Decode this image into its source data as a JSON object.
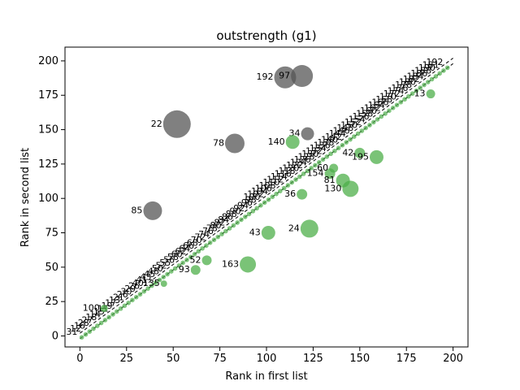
{
  "chart_data": {
    "type": "scatter",
    "title": "outstrength (g1)",
    "xlabel": "Rank in first list",
    "ylabel": "Rank in second list",
    "xlim": [
      -8,
      208
    ],
    "ylim": [
      -8,
      210
    ],
    "xticks": [
      0,
      25,
      50,
      75,
      100,
      125,
      150,
      175,
      200
    ],
    "yticks": [
      0,
      25,
      50,
      75,
      100,
      125,
      150,
      175,
      200
    ],
    "grid": false,
    "band_line_offsets": [
      -2,
      2
    ],
    "series": [
      {
        "color": "#555555",
        "points": [
          {
            "x": 52,
            "y": 154,
            "label": "22",
            "size": 34
          },
          {
            "x": 110,
            "y": 188,
            "label": "192",
            "size": 27
          },
          {
            "x": 119,
            "y": 189,
            "label": "97",
            "size": 27
          },
          {
            "x": 83,
            "y": 140,
            "label": "78",
            "size": 24
          },
          {
            "x": 39,
            "y": 91,
            "label": "85",
            "size": 23
          },
          {
            "x": 122,
            "y": 147,
            "label": "34",
            "size": 16
          }
        ]
      },
      {
        "color": "#4daf4a",
        "points": [
          {
            "x": 114,
            "y": 141,
            "label": "140",
            "size": 17
          },
          {
            "x": 123,
            "y": 78,
            "label": "24",
            "size": 22
          },
          {
            "x": 101,
            "y": 75,
            "label": "43",
            "size": 17
          },
          {
            "x": 90,
            "y": 52,
            "label": "163",
            "size": 20
          },
          {
            "x": 145,
            "y": 107,
            "label": "130",
            "size": 20
          },
          {
            "x": 141,
            "y": 113,
            "label": "81",
            "size": 17
          },
          {
            "x": 159,
            "y": 130,
            "label": "195",
            "size": 17
          },
          {
            "x": 150,
            "y": 133,
            "label": "42",
            "size": 13
          },
          {
            "x": 134,
            "y": 118,
            "label": "154",
            "size": 13
          },
          {
            "x": 136,
            "y": 122,
            "label": "60",
            "size": 11
          },
          {
            "x": 119,
            "y": 103,
            "label": "36",
            "size": 13
          },
          {
            "x": 62,
            "y": 48,
            "label": "93",
            "size": 12
          },
          {
            "x": 68,
            "y": 55,
            "label": "52",
            "size": 12
          },
          {
            "x": 188,
            "y": 176,
            "label": "13",
            "size": 11
          },
          {
            "x": 45,
            "y": 38,
            "label": "135",
            "size": 8
          },
          {
            "x": 13,
            "y": 20,
            "label": "100",
            "size": 9
          }
        ]
      }
    ],
    "diagonal_labels": [
      "31",
      "12",
      "16",
      "28",
      "27",
      "18",
      "14",
      "15",
      "11",
      "19",
      "17",
      "13",
      "21",
      "26",
      "30",
      "29",
      "26",
      "40",
      "41",
      "43",
      "45",
      "48",
      "50",
      "52",
      "55",
      "56",
      "58",
      "60",
      "62",
      "64",
      "66",
      "68",
      "70",
      "72",
      "74",
      "76",
      "78",
      "80",
      "82",
      "84",
      "86",
      "88",
      "90",
      "92",
      "94",
      "96",
      "98",
      "100",
      "102",
      "104",
      "106",
      "108",
      "110",
      "112",
      "114",
      "116",
      "118",
      "120",
      "122",
      "124",
      "126",
      "128",
      "130",
      "132",
      "134",
      "136",
      "138",
      "140",
      "142",
      "144",
      "146",
      "148",
      "150",
      "152",
      "154",
      "156",
      "158",
      "160",
      "162",
      "164",
      "166",
      "168",
      "170",
      "172",
      "174",
      "176",
      "178",
      "180",
      "182",
      "184",
      "186",
      "188",
      "190",
      "181",
      "192"
    ]
  }
}
